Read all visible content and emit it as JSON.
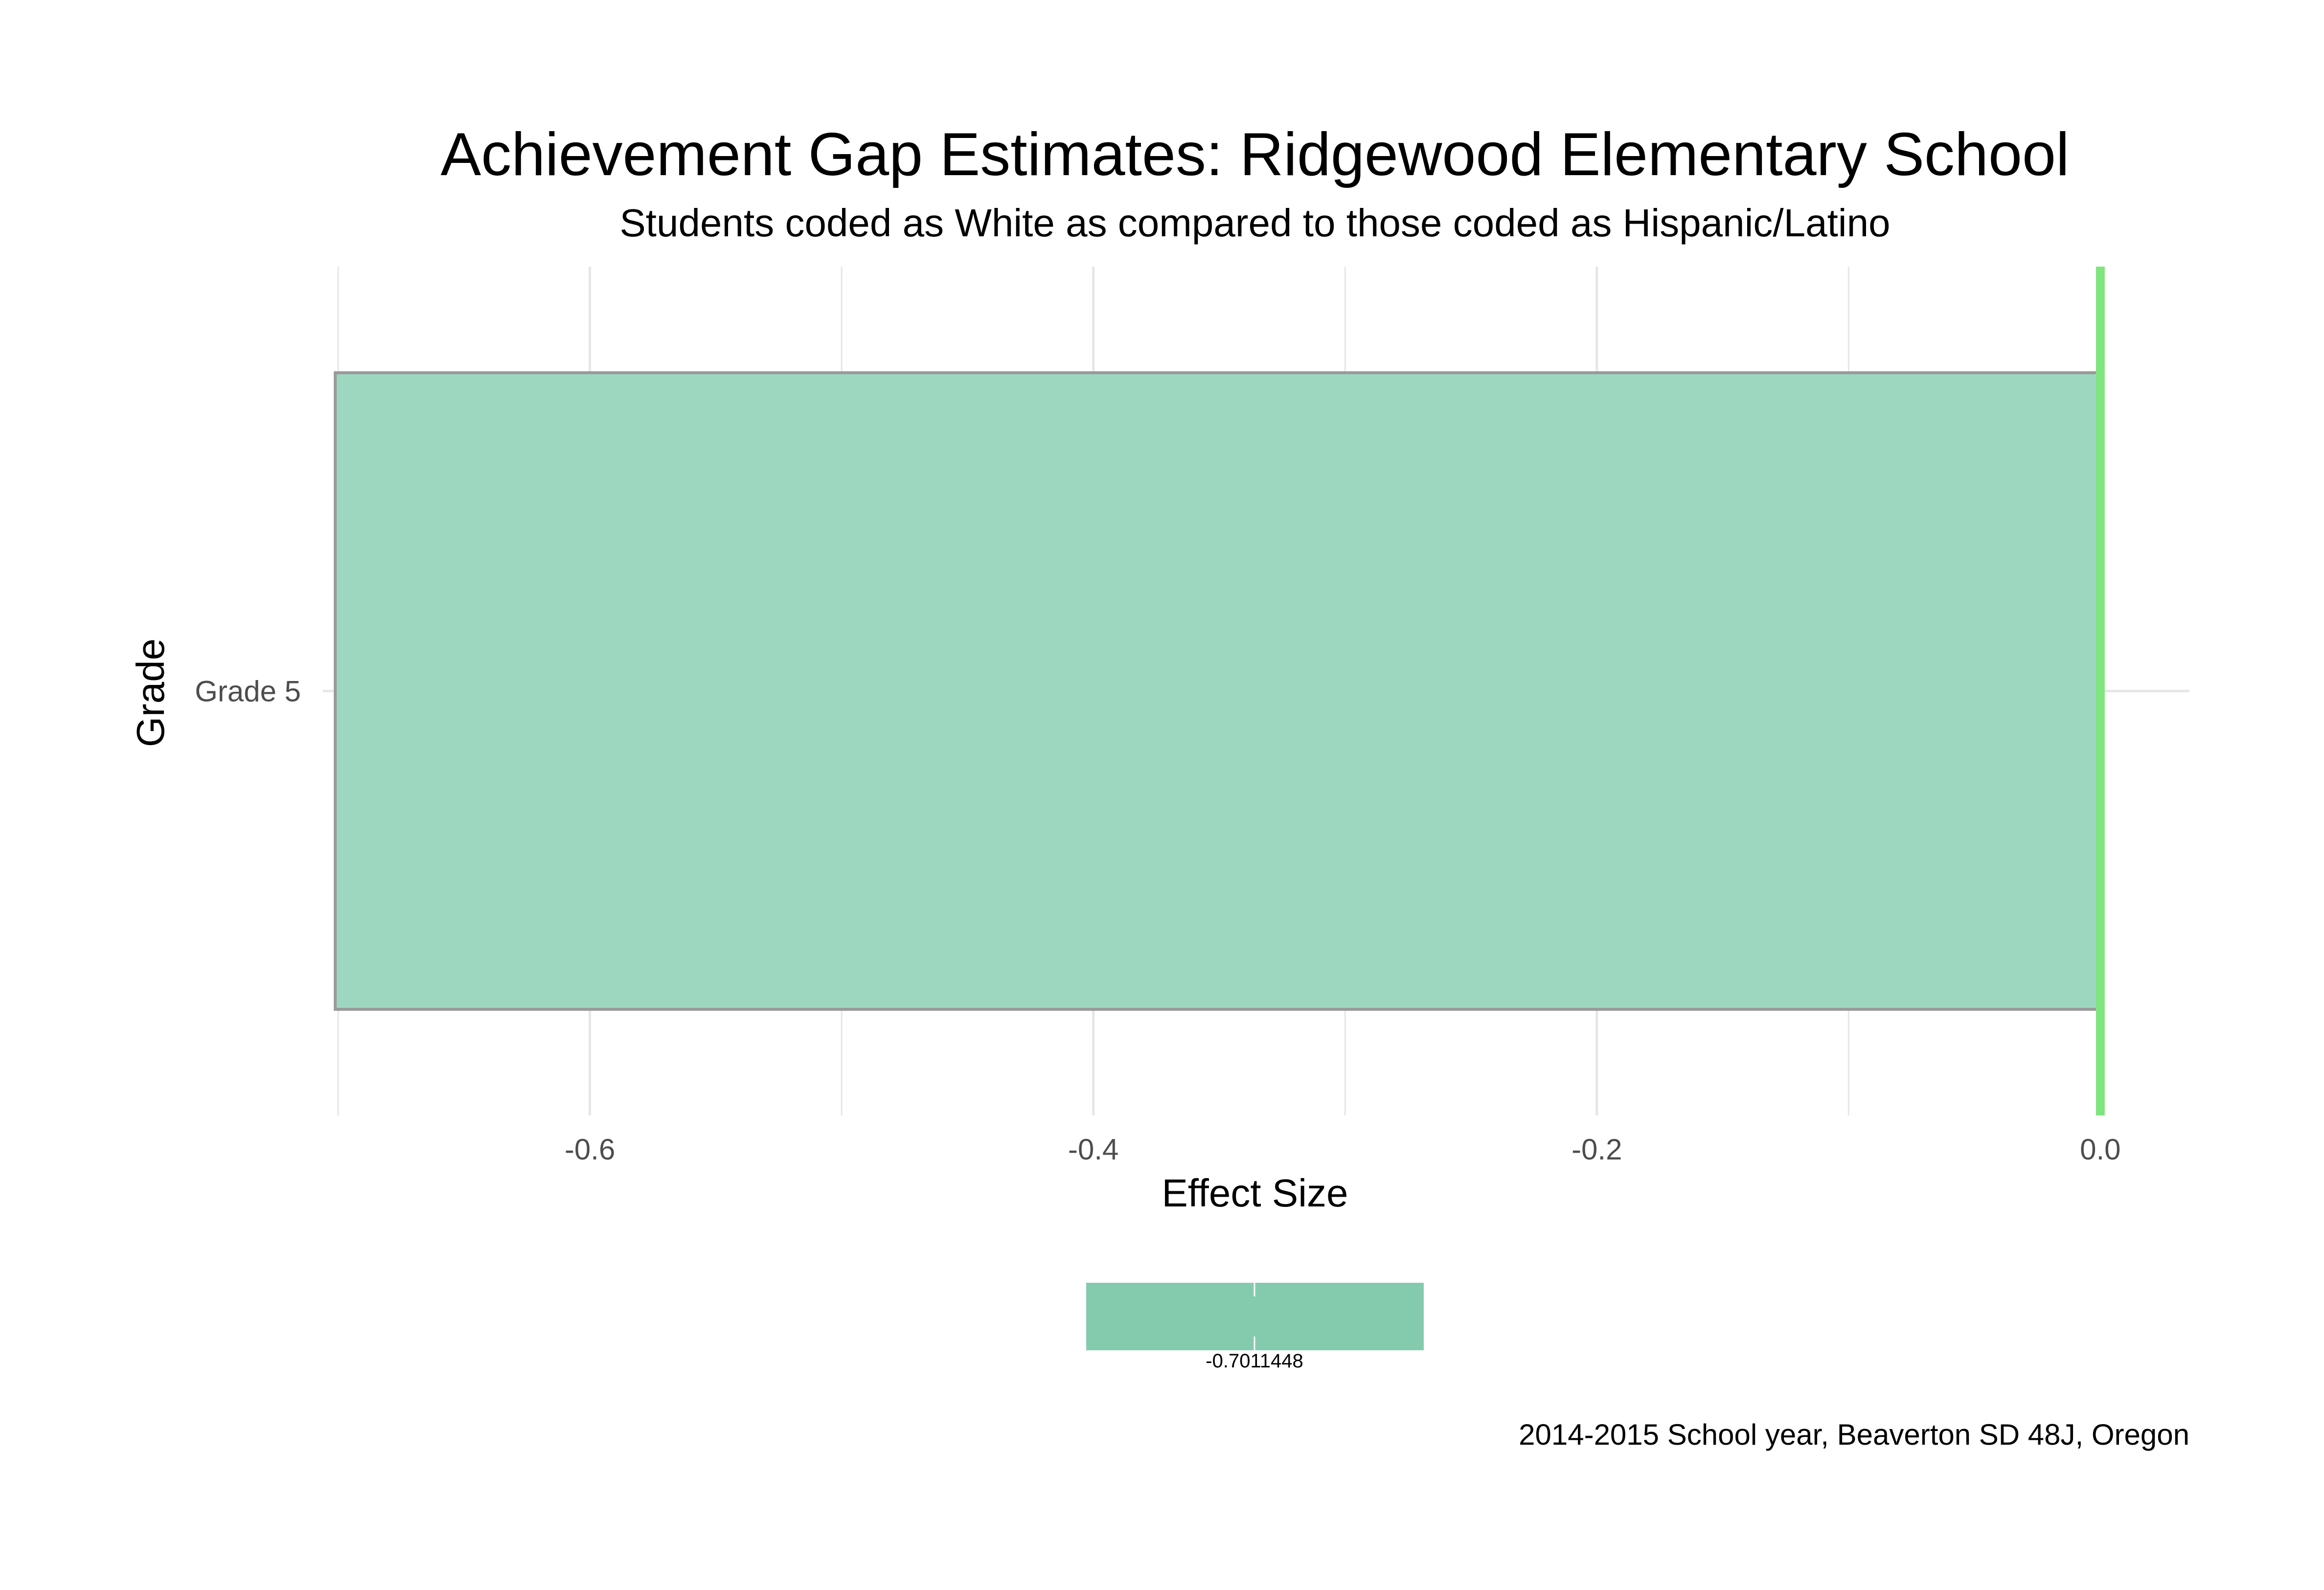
{
  "chart_data": {
    "type": "bar",
    "orientation": "horizontal",
    "title": "Achievement Gap Estimates: Ridgewood Elementary School",
    "subtitle": "Students coded as White as compared to those coded as Hispanic/Latino",
    "xlabel": "Effect Size",
    "ylabel": "Grade",
    "categories": [
      "Grade 5"
    ],
    "values": [
      -0.7011448
    ],
    "xlim": [
      -0.7011448,
      0.0
    ],
    "x_ticks": [
      -0.6,
      -0.4,
      -0.2,
      0.0
    ],
    "x_tick_labels": [
      "-0.6",
      "-0.4",
      "-0.2",
      "0.0"
    ],
    "x_minor_gridlines": [
      -0.7,
      -0.5,
      -0.3,
      -0.1
    ],
    "reference_line": {
      "x": 0.0,
      "color": "#7fe57f"
    },
    "grid": true,
    "legend": {
      "placement": "bottom",
      "type": "colorbar",
      "label": "-0.7011448",
      "color": "#84cbae"
    },
    "caption": "2014-2015 School year, Beaverton SD 48J, Oregon",
    "colors": {
      "bar_fill": "#9dd7bf",
      "bar_outline": "#999999",
      "grid": "#e6e6e6"
    }
  }
}
